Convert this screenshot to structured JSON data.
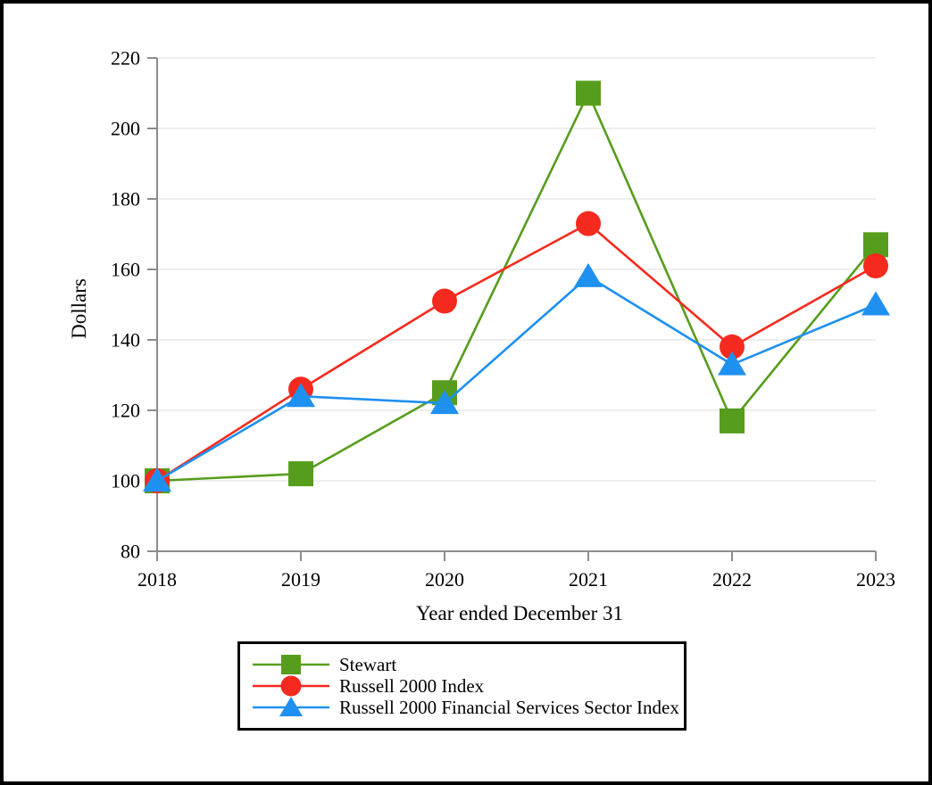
{
  "chart_data": {
    "type": "line",
    "title": "",
    "xlabel": "Year ended December 31",
    "ylabel": "Dollars",
    "x": [
      "2018",
      "2019",
      "2020",
      "2021",
      "2022",
      "2023"
    ],
    "ylim": [
      80,
      220
    ],
    "ytick_step": 20,
    "grid": true,
    "legend_position": "bottom",
    "series": [
      {
        "name": "Stewart",
        "marker": "square",
        "color": "#579D1D",
        "values": [
          100,
          102,
          125,
          210,
          117,
          167
        ]
      },
      {
        "name": "Russell 2000 Index",
        "marker": "circle",
        "color": "#F5291D",
        "values": [
          100,
          126,
          151,
          173,
          138,
          161
        ]
      },
      {
        "name": "Russell 2000 Financial Services Sector Index",
        "marker": "triangle",
        "color": "#1E90F0",
        "values": [
          100,
          124,
          122,
          158,
          133,
          150
        ]
      }
    ]
  },
  "style_colors": {
    "axis_line": "#8C8C8C",
    "gridline": "#E8E8E8",
    "tick_label": "#000000",
    "frame_border": "#000000"
  }
}
